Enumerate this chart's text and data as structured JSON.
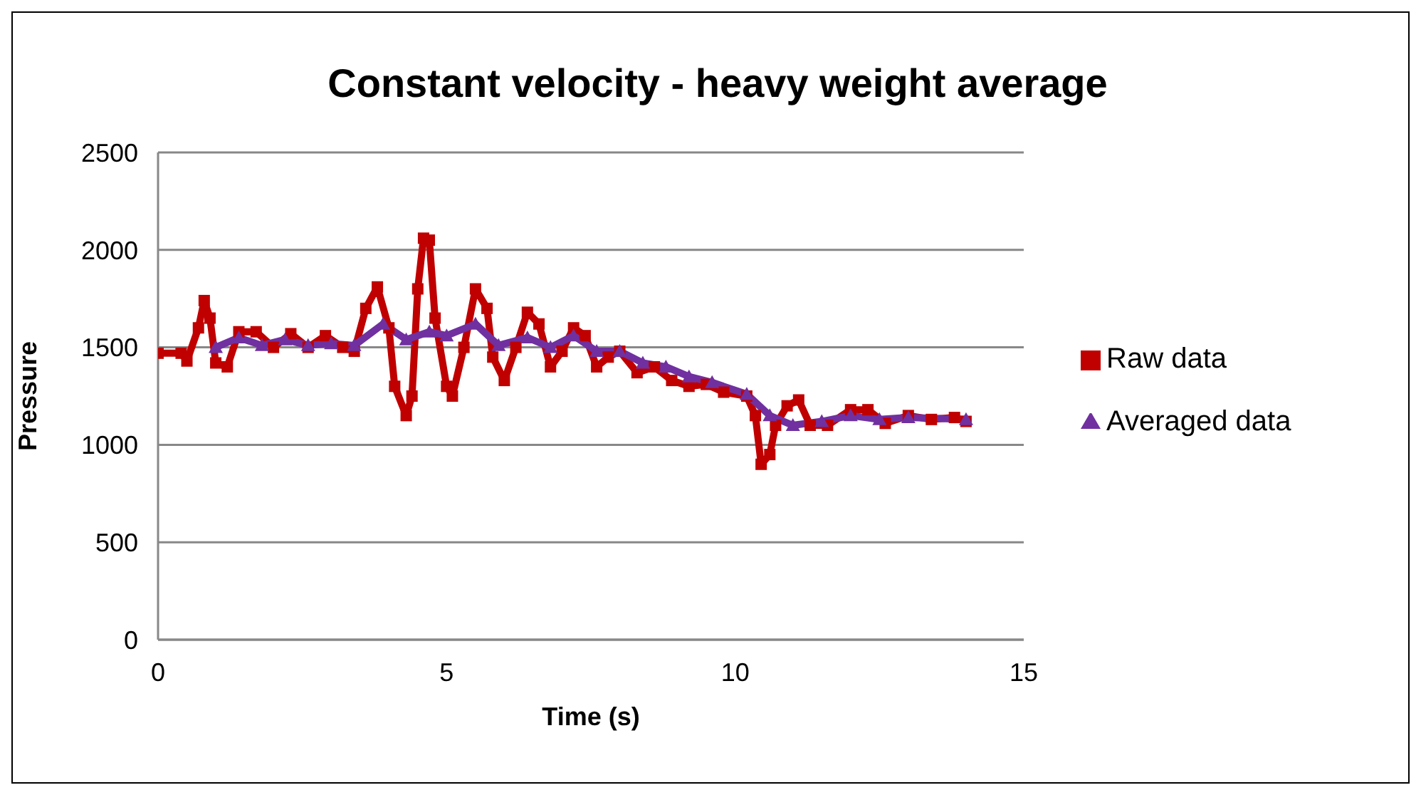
{
  "chart_data": {
    "type": "line",
    "title": "Constant velocity - heavy weight average",
    "xlabel": "Time (s)",
    "ylabel": "Pressure",
    "xlim": [
      0,
      15
    ],
    "xticks": [
      0,
      5,
      10,
      15
    ],
    "ylim": [
      0,
      2500
    ],
    "yticks": [
      0,
      500,
      1000,
      1500,
      2000,
      2500
    ],
    "grid": "y",
    "legend": "right",
    "line_style": "solid",
    "series": [
      {
        "name": "Raw data",
        "color": "#c00000",
        "marker": "square",
        "x": [
          0,
          0.4,
          0.5,
          0.7,
          0.8,
          0.9,
          1.0,
          1.2,
          1.4,
          1.7,
          2.0,
          2.3,
          2.6,
          2.9,
          3.2,
          3.4,
          3.6,
          3.8,
          4.0,
          4.1,
          4.3,
          4.4,
          4.5,
          4.6,
          4.7,
          4.8,
          5.0,
          5.1,
          5.3,
          5.5,
          5.7,
          5.8,
          6.0,
          6.2,
          6.4,
          6.6,
          6.8,
          7.0,
          7.2,
          7.4,
          7.6,
          7.8,
          8.0,
          8.3,
          8.6,
          8.9,
          9.2,
          9.5,
          9.8,
          10.2,
          10.35,
          10.45,
          10.6,
          10.7,
          10.9,
          11.1,
          11.3,
          11.6,
          12.0,
          12.3,
          12.6,
          13.0,
          13.4,
          13.8,
          14.0
        ],
        "values": [
          1470,
          1470,
          1430,
          1600,
          1740,
          1650,
          1420,
          1400,
          1580,
          1580,
          1500,
          1570,
          1500,
          1560,
          1500,
          1480,
          1700,
          1810,
          1600,
          1300,
          1150,
          1250,
          1800,
          2060,
          2050,
          1650,
          1300,
          1250,
          1500,
          1800,
          1700,
          1450,
          1330,
          1500,
          1680,
          1620,
          1400,
          1480,
          1600,
          1560,
          1400,
          1450,
          1480,
          1370,
          1400,
          1330,
          1300,
          1310,
          1270,
          1250,
          1150,
          900,
          950,
          1100,
          1200,
          1230,
          1100,
          1100,
          1180,
          1180,
          1110,
          1150,
          1130,
          1140,
          1120
        ]
      },
      {
        "name": "Averaged data",
        "color": "#7030a0",
        "marker": "triangle",
        "x": [
          1.0,
          1.4,
          1.8,
          2.2,
          2.6,
          3.0,
          3.4,
          3.9,
          4.3,
          4.7,
          5.0,
          5.5,
          5.9,
          6.4,
          6.8,
          7.2,
          7.6,
          8.0,
          8.4,
          8.8,
          9.2,
          9.6,
          10.2,
          10.6,
          11.0,
          11.5,
          12.0,
          12.5,
          13.0,
          14.0
        ],
        "values": [
          1500,
          1550,
          1510,
          1540,
          1510,
          1520,
          1510,
          1620,
          1540,
          1580,
          1560,
          1620,
          1510,
          1550,
          1500,
          1560,
          1480,
          1480,
          1420,
          1400,
          1350,
          1320,
          1260,
          1150,
          1100,
          1120,
          1150,
          1130,
          1140,
          1130
        ]
      }
    ]
  }
}
